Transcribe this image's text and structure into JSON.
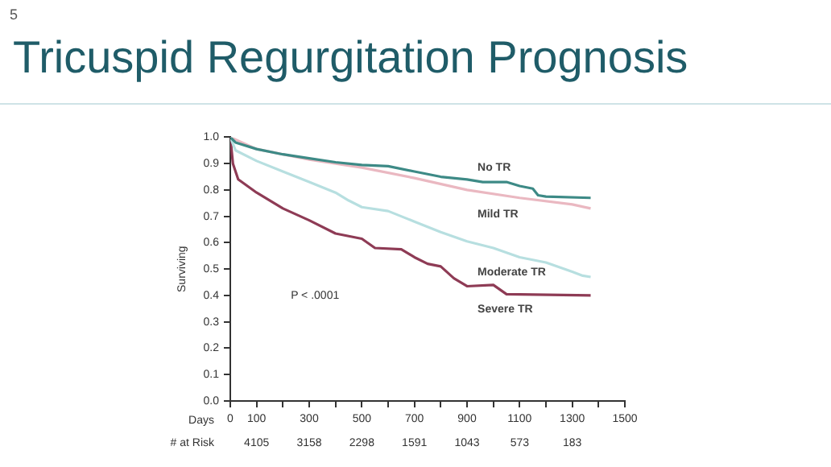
{
  "chart_data": {
    "type": "line",
    "title": "Tricuspid Regurgitation Prognosis",
    "xlabel": "Days",
    "ylabel": "Surviving",
    "xlim": [
      0,
      1500
    ],
    "ylim": [
      0,
      1
    ],
    "xticks": [
      0,
      100,
      {
        "value": 200,
        "label": null
      },
      300,
      {
        "value": 400,
        "label": null
      },
      500,
      {
        "value": 600,
        "label": null
      },
      700,
      {
        "value": 800,
        "label": null
      },
      900,
      {
        "value": 1000,
        "label": null
      },
      1100,
      {
        "value": 1200,
        "label": null
      },
      1300,
      {
        "value": 1400,
        "label": null
      },
      1500
    ],
    "yticks": [
      {
        "value": 0,
        "label": "0.0"
      },
      0.1,
      0.2,
      0.3,
      0.4,
      0.5,
      0.6,
      0.7,
      0.8,
      0.9,
      {
        "value": 1,
        "label": "1.0"
      }
    ],
    "grid": false,
    "legend": false,
    "marker": "none",
    "line_style": "solid",
    "series": [
      {
        "name": "No TR",
        "color": "#3d8a86",
        "x": [
          0,
          20,
          100,
          200,
          300,
          400,
          500,
          600,
          700,
          800,
          900,
          960,
          1050,
          1100,
          1150,
          1170,
          1200,
          1370
        ],
        "values": [
          1.0,
          0.98,
          0.955,
          0.935,
          0.92,
          0.905,
          0.895,
          0.89,
          0.87,
          0.85,
          0.84,
          0.83,
          0.83,
          0.815,
          0.805,
          0.78,
          0.775,
          0.77
        ]
      },
      {
        "name": "Mild TR",
        "color": "#eab8c1",
        "x": [
          0,
          100,
          300,
          500,
          700,
          900,
          1100,
          1300,
          1370
        ],
        "values": [
          1.0,
          0.955,
          0.915,
          0.885,
          0.845,
          0.8,
          0.77,
          0.745,
          0.73
        ]
      },
      {
        "name": "Moderate TR",
        "color": "#b7dfe0",
        "x": [
          0,
          20,
          100,
          200,
          300,
          400,
          450,
          500,
          600,
          700,
          800,
          900,
          1000,
          1100,
          1200,
          1300,
          1340,
          1370
        ],
        "values": [
          1.0,
          0.95,
          0.91,
          0.87,
          0.83,
          0.79,
          0.76,
          0.735,
          0.72,
          0.68,
          0.64,
          0.605,
          0.58,
          0.545,
          0.525,
          0.49,
          0.475,
          0.47
        ]
      },
      {
        "name": "Severe TR",
        "color": "#8e3b55",
        "x": [
          0,
          10,
          30,
          100,
          200,
          300,
          400,
          500,
          550,
          650,
          700,
          750,
          800,
          850,
          900,
          1000,
          1050,
          1370
        ],
        "values": [
          1.0,
          0.9,
          0.84,
          0.79,
          0.73,
          0.685,
          0.635,
          0.615,
          0.58,
          0.575,
          0.545,
          0.52,
          0.51,
          0.465,
          0.435,
          0.44,
          0.405,
          0.4
        ]
      }
    ],
    "annotations": [
      "5",
      "P < .0001",
      "# at Risk",
      "4105",
      "3158",
      "2298",
      "1591",
      "1043",
      "573",
      "183"
    ]
  }
}
